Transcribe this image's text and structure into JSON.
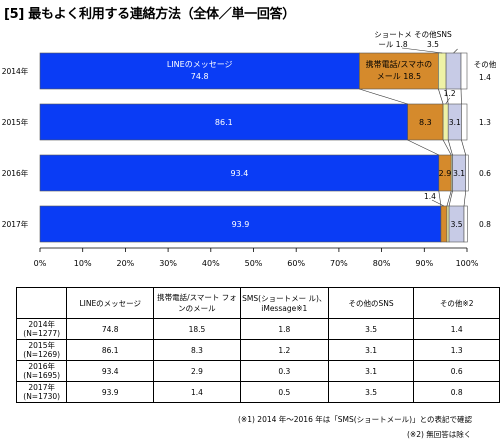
{
  "title": "[5] 最もよく利用する連絡方法（全体／単一回答）",
  "chart_data": {
    "type": "bar",
    "orientation": "horizontal",
    "stacked": true,
    "percent": true,
    "categories": [
      "2014年",
      "2015年",
      "2016年",
      "2017年"
    ],
    "series": [
      {
        "name": "LINEのメッセージ",
        "color": "#0a3cf5",
        "values": [
          74.8,
          86.1,
          93.4,
          93.9
        ]
      },
      {
        "name": "携帯電話/スマホのメール",
        "color": "#d58a2c",
        "values": [
          18.5,
          8.3,
          2.9,
          1.4
        ]
      },
      {
        "name": "ショートメール",
        "color": "#eef2a6",
        "values": [
          1.8,
          1.2,
          0.3,
          0.5
        ]
      },
      {
        "name": "その他SNS",
        "color": "#c7cbe6",
        "values": [
          3.5,
          3.1,
          3.1,
          3.5
        ]
      },
      {
        "name": "その他",
        "color": "#ffffff",
        "values": [
          1.4,
          1.3,
          0.6,
          0.8
        ]
      }
    ],
    "x_ticks": [
      "0%",
      "10%",
      "20%",
      "30%",
      "40%",
      "50%",
      "60%",
      "70%",
      "80%",
      "90%",
      "100%"
    ],
    "xlim": [
      0,
      100
    ],
    "grid": false,
    "legend": "callout labels on 2014 bar"
  },
  "table": {
    "headers": [
      "LINEのメッセージ",
      "携帯電話/スマート フォンのメール",
      "SMS(ショートメー ル)、iMessage※1",
      "その他のSNS",
      "その他※2"
    ],
    "rows": [
      {
        "year": "2014年",
        "n": "(N=1277)",
        "values": [
          "74.8",
          "18.5",
          "1.8",
          "3.5",
          "1.4"
        ]
      },
      {
        "year": "2015年",
        "n": "(N=1269)",
        "values": [
          "86.1",
          "8.3",
          "1.2",
          "3.1",
          "1.3"
        ]
      },
      {
        "year": "2016年",
        "n": "(N=1695)",
        "values": [
          "93.4",
          "2.9",
          "0.3",
          "3.1",
          "0.6"
        ]
      },
      {
        "year": "2017年",
        "n": "(N=1730)",
        "values": [
          "93.9",
          "1.4",
          "0.5",
          "3.5",
          "0.8"
        ]
      }
    ]
  },
  "notes": {
    "note1": "(※1) 2014 年～2016 年は「SMS(ショートメール)」との表記で確認",
    "note2": "(※2) 無回答は除く"
  }
}
